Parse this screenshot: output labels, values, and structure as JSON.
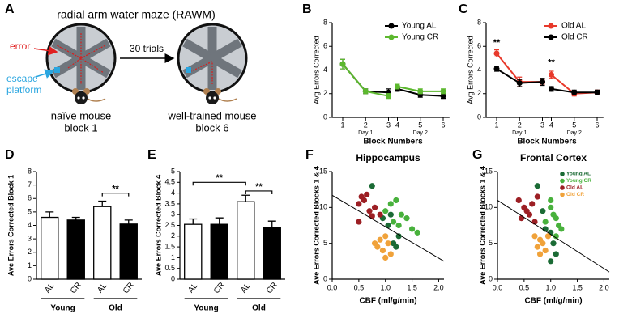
{
  "panel_a": {
    "label": "A",
    "title": "radial arm water maze (RAWM)",
    "error": "error",
    "escape_platform": [
      "escape",
      "platform"
    ],
    "arrow": "30 trials",
    "mice": [
      {
        "lines": [
          "naïve mouse",
          "block 1"
        ]
      },
      {
        "lines": [
          "well-trained mouse",
          "block 6"
        ]
      }
    ]
  },
  "chart_data": [
    {
      "type": "line",
      "label": "B",
      "ylabel": "Avg Errors Corrected",
      "xlabel": "Block Numbers",
      "x": [
        1,
        2,
        3,
        4,
        5,
        6
      ],
      "x_groups": [
        {
          "label": "Day 1",
          "range": [
            1,
            3
          ]
        },
        {
          "label": "Day 2",
          "range": [
            4,
            6
          ]
        }
      ],
      "ylim": [
        0,
        8
      ],
      "yticks": [
        0,
        2,
        4,
        6,
        8
      ],
      "legend": "upper right",
      "series": [
        {
          "name": "Young AL",
          "color": "#000000",
          "values": [
            4.5,
            2.2,
            2.1,
            2.4,
            1.9,
            1.8
          ],
          "errors": [
            0.4,
            0.2,
            0.3,
            0.2,
            0.2,
            0.2
          ]
        },
        {
          "name": "Young CR",
          "color": "#5cb82e",
          "values": [
            4.5,
            2.2,
            1.8,
            2.6,
            2.2,
            2.2
          ],
          "errors": [
            0.4,
            0.2,
            0.2,
            0.2,
            0.2,
            0.2
          ]
        }
      ]
    },
    {
      "type": "line",
      "label": "C",
      "ylabel": "Avg Errors Corrected",
      "xlabel": "Block Numbers",
      "x": [
        1,
        2,
        3,
        4,
        5,
        6
      ],
      "x_groups": [
        {
          "label": "Day 1",
          "range": [
            1,
            3
          ]
        },
        {
          "label": "Day 2",
          "range": [
            4,
            6
          ]
        }
      ],
      "ylim": [
        0,
        8
      ],
      "yticks": [
        0,
        2,
        4,
        6,
        8
      ],
      "legend": "upper right",
      "series": [
        {
          "name": "Old AL",
          "color": "#e8392b",
          "values": [
            5.4,
            3.0,
            3.0,
            3.6,
            2.0,
            2.1
          ],
          "errors": [
            0.3,
            0.4,
            0.2,
            0.3,
            0.2,
            0.2
          ]
        },
        {
          "name": "Old CR",
          "color": "#000000",
          "values": [
            4.1,
            2.9,
            3.0,
            2.4,
            2.1,
            2.1
          ],
          "errors": [
            0.2,
            0.3,
            0.3,
            0.2,
            0.2,
            0.2
          ]
        }
      ],
      "annotations": [
        {
          "text": "**",
          "x": 1,
          "y": 6.3
        },
        {
          "text": "**",
          "x": 4,
          "y": 4.6
        }
      ]
    },
    {
      "type": "bar",
      "label": "D",
      "ylabel": "Ave Errors Corrected Block 1",
      "categories": [
        "AL",
        "CR"
      ],
      "colors": [
        "#ffffff",
        "#000000"
      ],
      "groups": [
        {
          "label": "Young",
          "values": [
            4.6,
            4.4
          ],
          "errors": [
            0.4,
            0.2
          ]
        },
        {
          "label": "Old",
          "values": [
            5.4,
            4.1
          ],
          "errors": [
            0.4,
            0.3
          ]
        }
      ],
      "ylim": [
        0,
        8
      ],
      "yticks": [
        0,
        1,
        2,
        3,
        4,
        5,
        6,
        7,
        8
      ],
      "brackets": [
        {
          "text": "**",
          "from": 2,
          "to": 3,
          "y": 6.4
        }
      ]
    },
    {
      "type": "bar",
      "label": "E",
      "ylabel": "Ave Errors Corrected Block 4",
      "categories": [
        "AL",
        "CR"
      ],
      "colors": [
        "#ffffff",
        "#000000"
      ],
      "groups": [
        {
          "label": "Young",
          "values": [
            2.55,
            2.55
          ],
          "errors": [
            0.25,
            0.3
          ]
        },
        {
          "label": "Old",
          "values": [
            3.6,
            2.4
          ],
          "errors": [
            0.3,
            0.3
          ]
        }
      ],
      "ylim": [
        0,
        5
      ],
      "yticks": [
        0,
        0.5,
        1,
        1.5,
        2,
        2.5,
        3,
        3.5,
        4,
        4.5,
        5
      ],
      "brackets": [
        {
          "text": "**",
          "from": 0,
          "to": 2,
          "y": 4.5
        },
        {
          "text": "**",
          "from": 2,
          "to": 3,
          "y": 4.1
        }
      ]
    },
    {
      "type": "scatter",
      "label": "F",
      "title": "Hippocampus",
      "ylabel": "Ave Errors Corrected Blocks 1 & 4",
      "xlabel": "CBF (ml/g/min)",
      "xlim": [
        0,
        2.1
      ],
      "xticks": [
        {
          "value": 0,
          "label": "0.0"
        },
        {
          "value": 0.5,
          "label": "0.5"
        },
        {
          "value": 1,
          "label": "1.0"
        },
        {
          "value": 1.5,
          "label": "1.5"
        },
        {
          "value": 2,
          "label": "2.0"
        }
      ],
      "ylim": [
        0,
        15
      ],
      "yticks": [
        0,
        5,
        10,
        15
      ],
      "fit": {
        "x": [
          0,
          2.1
        ],
        "y": [
          11.7,
          2.5
        ]
      },
      "series": [
        {
          "color": "#1b6b35",
          "x": [
            0.75,
            0.95,
            1.1,
            1.15,
            1.2,
            1.25,
            1.05
          ],
          "values": [
            13,
            8.5,
            9,
            5,
            4.5,
            6,
            7.5
          ]
        },
        {
          "color": "#48b13c",
          "x": [
            1.0,
            1.1,
            1.15,
            1.2,
            1.3,
            1.4,
            1.5,
            1.6,
            1.25
          ],
          "values": [
            9.5,
            10.5,
            8,
            11,
            9,
            8.5,
            7,
            6.5,
            7.5
          ]
        },
        {
          "color": "#9c1f24",
          "x": [
            0.5,
            0.55,
            0.6,
            0.65,
            0.5,
            0.7,
            0.75,
            0.8,
            0.9
          ],
          "values": [
            10.5,
            11.5,
            11,
            11.8,
            8,
            9.5,
            8.8,
            10,
            9
          ]
        },
        {
          "color": "#f0a23a",
          "x": [
            0.8,
            0.9,
            0.95,
            1.0,
            1.05,
            0.85,
            1.1,
            1.0
          ],
          "values": [
            5,
            5.5,
            4,
            6,
            5,
            4.5,
            3.5,
            3
          ]
        }
      ]
    },
    {
      "type": "scatter",
      "label": "G",
      "title": "Frontal Cortex",
      "ylabel": "Ave Errors Corrected Blocks 1 & 4",
      "xlabel": "CBF (ml/g/min)",
      "xlim": [
        0,
        2.1
      ],
      "xticks": [
        {
          "value": 0,
          "label": "0.0"
        },
        {
          "value": 0.5,
          "label": "0.5"
        },
        {
          "value": 1,
          "label": "1.0"
        },
        {
          "value": 1.5,
          "label": "1.5"
        },
        {
          "value": 2,
          "label": "2.0"
        }
      ],
      "ylim": [
        0,
        15
      ],
      "yticks": [
        0,
        5,
        10,
        15
      ],
      "legend": "upper right",
      "fit": {
        "x": [
          0,
          2.1
        ],
        "y": [
          11,
          1
        ]
      },
      "series": [
        {
          "name": "Young AL",
          "color": "#1b6b35",
          "x": [
            0.75,
            0.85,
            0.9,
            1.0,
            1.05,
            1.0,
            1.1
          ],
          "values": [
            13,
            9.5,
            7,
            6.5,
            5,
            2.5,
            3.5
          ]
        },
        {
          "name": "Young CR",
          "color": "#48b13c",
          "x": [
            0.9,
            1.0,
            1.05,
            1.1,
            1.15,
            1.2,
            1.1,
            1.0
          ],
          "values": [
            8,
            11,
            9,
            8.5,
            7.5,
            7,
            6,
            10
          ]
        },
        {
          "name": "Old AL",
          "color": "#9c1f24",
          "x": [
            0.4,
            0.5,
            0.55,
            0.6,
            0.45,
            0.7,
            0.75,
            0.65
          ],
          "values": [
            11,
            10,
            9.5,
            9,
            8.5,
            8,
            11.5,
            10.5
          ]
        },
        {
          "name": "Old CR",
          "color": "#f0a23a",
          "x": [
            0.7,
            0.8,
            0.85,
            0.9,
            0.95,
            0.75,
            0.8
          ],
          "values": [
            6,
            5.5,
            5,
            4,
            6,
            4.5,
            3.5
          ]
        }
      ]
    }
  ]
}
